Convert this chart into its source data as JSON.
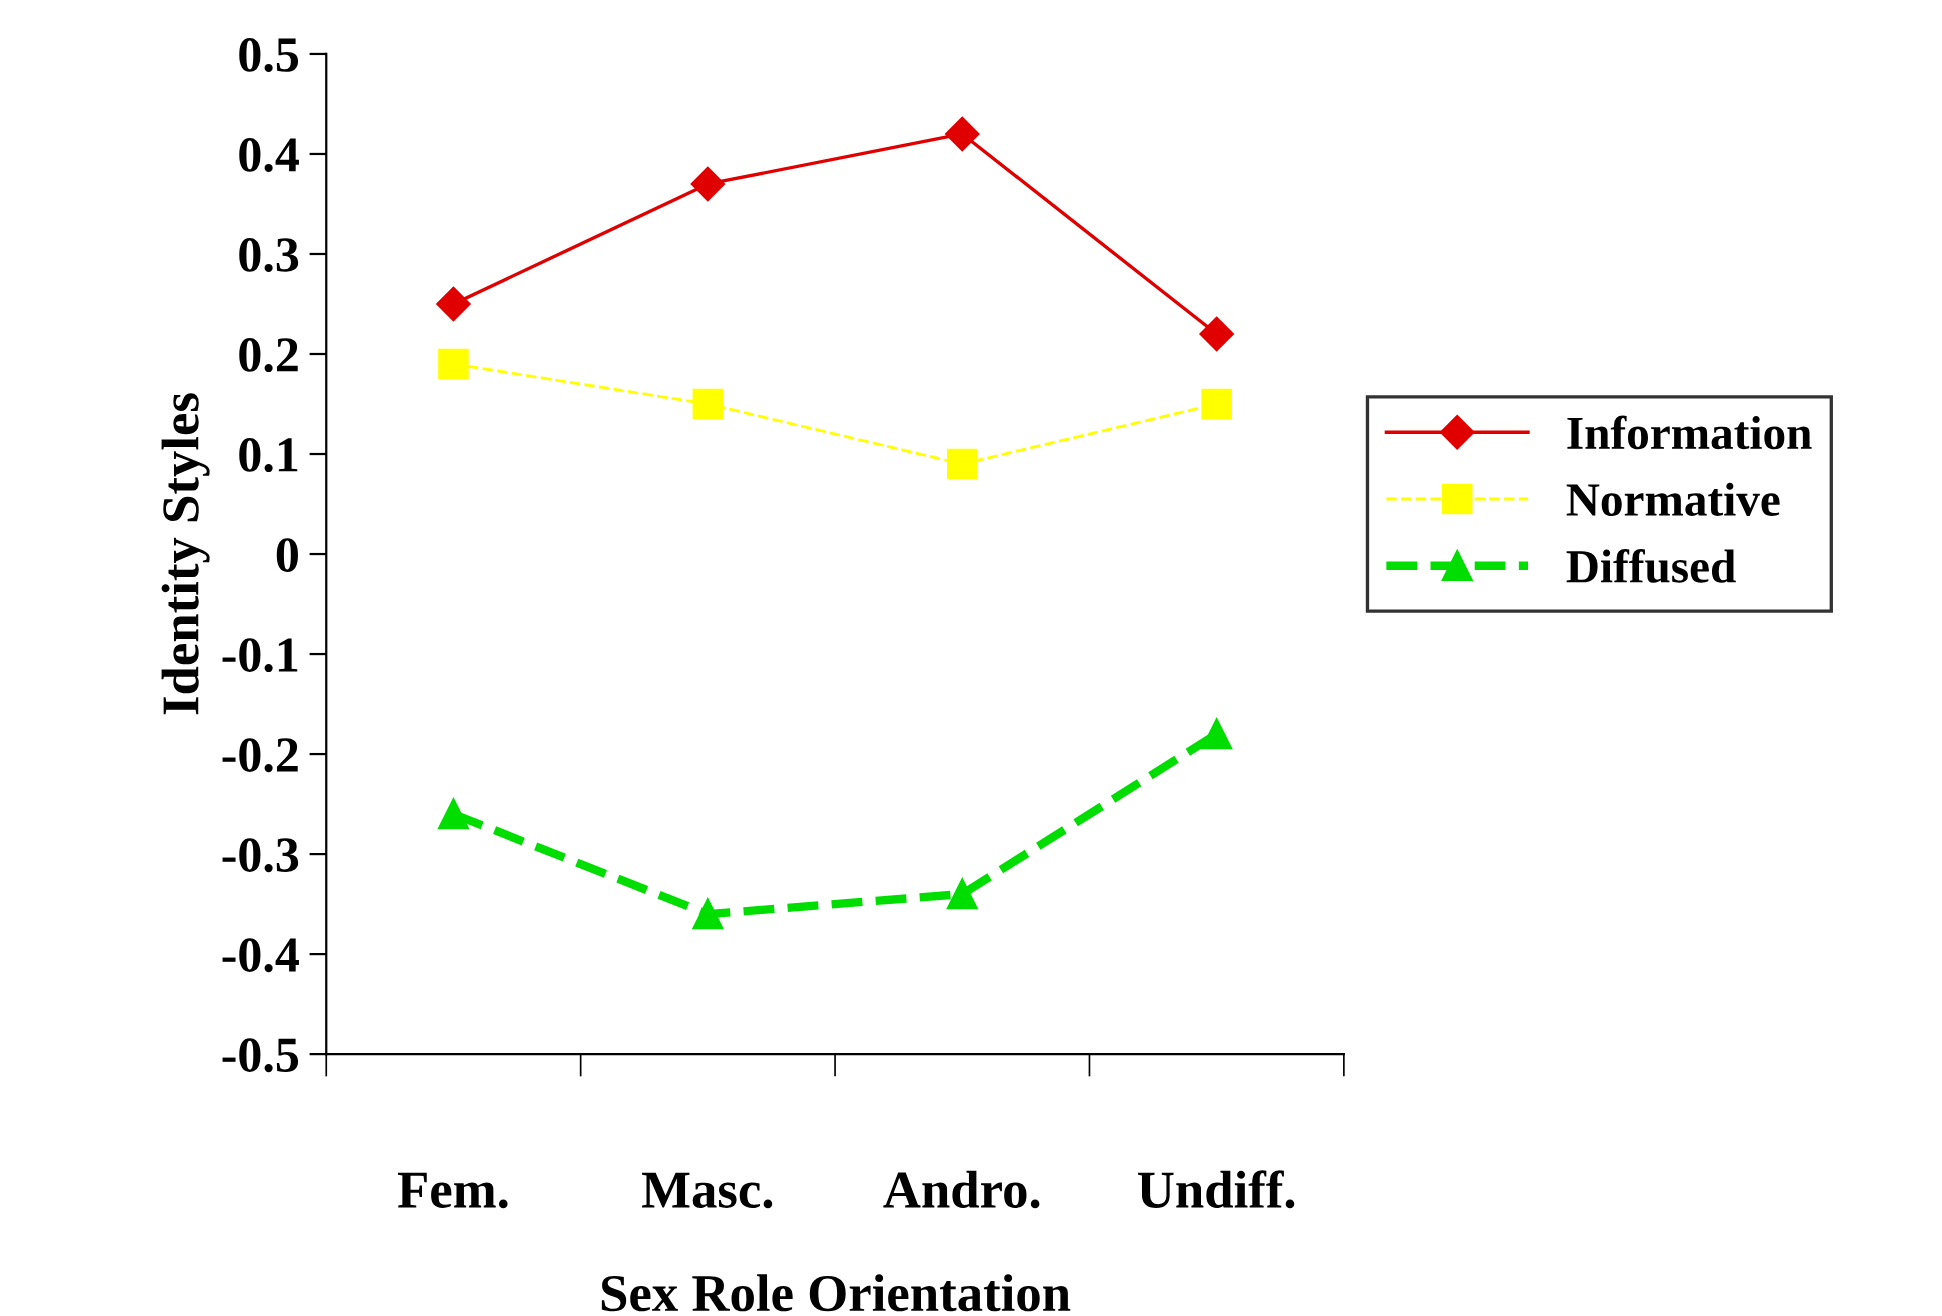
{
  "chart_data": {
    "type": "line",
    "xlabel": "Sex Role Orientation",
    "ylabel": "Identity Styles",
    "categories": [
      "Fem.",
      "Masc.",
      "Andro.",
      "Undiff."
    ],
    "series": [
      {
        "name": "Information",
        "color": "#e00000",
        "marker": "diamond",
        "line_style": "solid",
        "values": [
          0.25,
          0.37,
          0.42,
          0.22
        ]
      },
      {
        "name": "Normative",
        "color": "#ffff00",
        "marker": "square",
        "line_style": "dashed",
        "values": [
          0.19,
          0.15,
          0.09,
          0.15
        ]
      },
      {
        "name": "Diffused",
        "color": "#00dd00",
        "marker": "triangle",
        "line_style": "dashed",
        "values": [
          -0.26,
          -0.36,
          -0.34,
          -0.18
        ]
      }
    ],
    "ylim": [
      -0.5,
      0.5
    ],
    "yticks": [
      -0.5,
      -0.4,
      -0.3,
      -0.2,
      -0.1,
      0,
      0.1,
      0.2,
      0.3,
      0.4,
      0.5
    ],
    "grid": false,
    "legend": "right"
  }
}
